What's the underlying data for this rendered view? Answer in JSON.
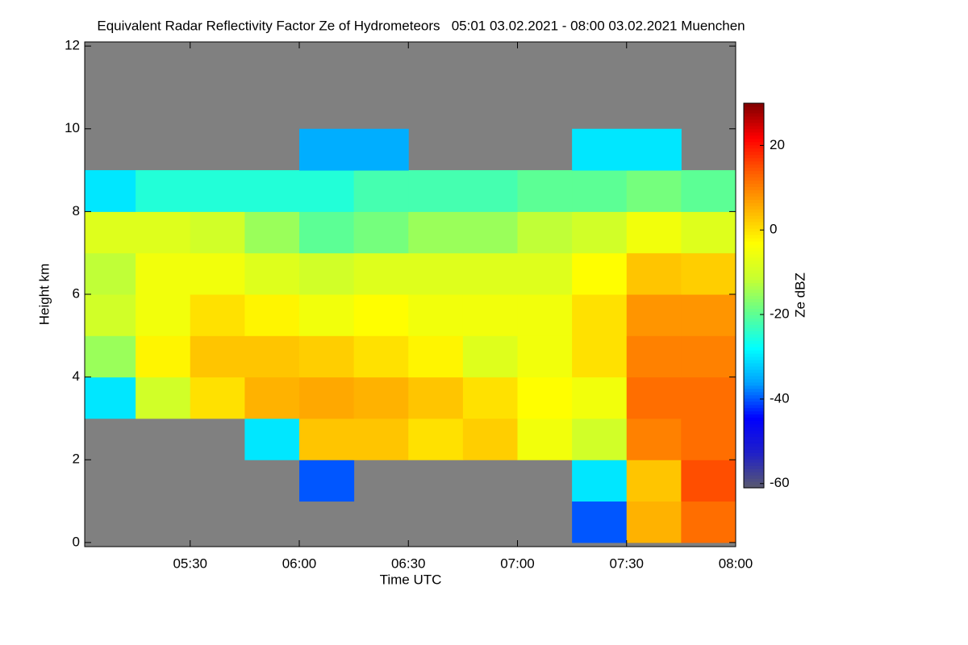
{
  "chart_data": {
    "type": "heatmap",
    "title": "Equivalent Radar Reflectivity Factor Ze of Hydrometeors   05:01 03.02.2021 - 08:00 03.02.2021 Muenchen",
    "x_label": "Time UTC",
    "y_label": "Height km",
    "x_edges": [
      301,
      315,
      330,
      345,
      360,
      375,
      390,
      405,
      420,
      435,
      450,
      465,
      480
    ],
    "y_edges": [
      0,
      1,
      2,
      3,
      4,
      5,
      6,
      7,
      8,
      9,
      10,
      11,
      12
    ],
    "z": [
      [
        null,
        null,
        null,
        null,
        null,
        null,
        null,
        null,
        null,
        -40,
        5,
        12
      ],
      [
        null,
        null,
        null,
        null,
        -40,
        null,
        null,
        null,
        null,
        -30,
        3,
        15
      ],
      [
        null,
        null,
        null,
        -30,
        3,
        3,
        0,
        2,
        -5,
        -10,
        10,
        12
      ],
      [
        -30,
        -10,
        0,
        5,
        6,
        5,
        3,
        0,
        -3,
        -5,
        12,
        12
      ],
      [
        -15,
        -2,
        3,
        3,
        2,
        0,
        -2,
        -8,
        -5,
        0,
        10,
        10
      ],
      [
        -10,
        -5,
        0,
        -2,
        -5,
        -3,
        -5,
        -5,
        -5,
        0,
        8,
        8
      ],
      [
        -12,
        -5,
        -5,
        -8,
        -10,
        -8,
        -8,
        -8,
        -8,
        -3,
        3,
        2
      ],
      [
        -8,
        -8,
        -10,
        -15,
        -20,
        -18,
        -15,
        -15,
        -12,
        -10,
        -5,
        -8
      ],
      [
        -30,
        -25,
        -25,
        -25,
        -25,
        -22,
        -22,
        -22,
        -20,
        -20,
        -18,
        -20
      ],
      [
        null,
        null,
        null,
        null,
        -35,
        -35,
        null,
        null,
        null,
        -30,
        -30,
        null
      ],
      [
        null,
        null,
        null,
        null,
        null,
        null,
        null,
        null,
        null,
        null,
        null,
        null
      ],
      [
        null,
        null,
        null,
        null,
        null,
        null,
        null,
        null,
        null,
        null,
        null,
        null
      ]
    ],
    "xlim": [
      301,
      480
    ],
    "xticks": [
      {
        "value": 330,
        "label": "05:30"
      },
      {
        "value": 360,
        "label": "06:00"
      },
      {
        "value": 390,
        "label": "06:30"
      },
      {
        "value": 420,
        "label": "07:00"
      },
      {
        "value": 450,
        "label": "07:30"
      },
      {
        "value": 480,
        "label": "08:00"
      }
    ],
    "ylim": [
      -0.1,
      12.1
    ],
    "yticks": [
      0,
      2,
      4,
      6,
      8,
      10,
      12
    ],
    "background": "#808080",
    "colorbar": {
      "label": "Ze dBZ",
      "clim": [
        -61,
        30
      ],
      "ticks": [
        -60,
        -40,
        -20,
        0,
        20
      ],
      "colormap": [
        "#5a5a6e",
        "#2020c8",
        "#0000ff",
        "#00a0ff",
        "#00ffff",
        "#60ff90",
        "#c8ff30",
        "#ffff00",
        "#ffb000",
        "#ff6000",
        "#ff0000",
        "#800000"
      ]
    }
  }
}
